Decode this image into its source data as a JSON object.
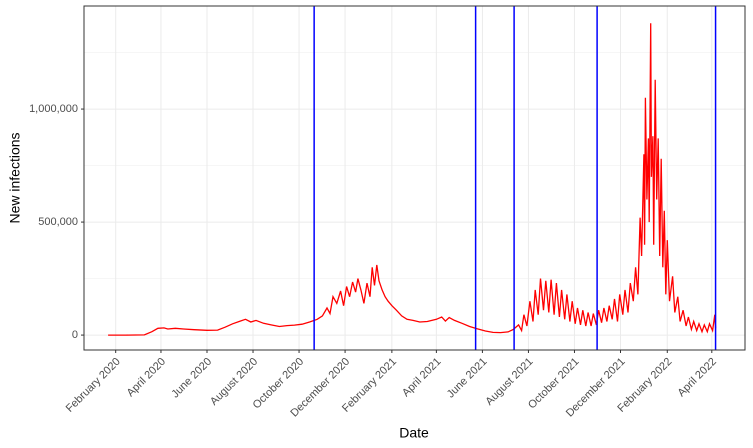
{
  "chart_data": {
    "type": "line",
    "xlabel": "Date",
    "ylabel": "New infections",
    "x": [
      "2020-01-22",
      "2020-02-15",
      "2020-03-10",
      "2020-03-20",
      "2020-03-28",
      "2020-04-05",
      "2020-04-10",
      "2020-04-20",
      "2020-05-01",
      "2020-05-15",
      "2020-06-01",
      "2020-06-15",
      "2020-06-25",
      "2020-07-05",
      "2020-07-15",
      "2020-07-22",
      "2020-07-29",
      "2020-08-05",
      "2020-08-15",
      "2020-08-25",
      "2020-09-05",
      "2020-09-15",
      "2020-09-25",
      "2020-10-05",
      "2020-10-15",
      "2020-10-25",
      "2020-11-01",
      "2020-11-07",
      "2020-11-11",
      "2020-11-15",
      "2020-11-20",
      "2020-11-25",
      "2020-11-29",
      "2020-12-03",
      "2020-12-07",
      "2020-12-11",
      "2020-12-15",
      "2020-12-18",
      "2020-12-22",
      "2020-12-26",
      "2020-12-30",
      "2021-01-03",
      "2021-01-06",
      "2021-01-09",
      "2021-01-12",
      "2021-01-15",
      "2021-01-19",
      "2021-01-23",
      "2021-01-27",
      "2021-02-01",
      "2021-02-07",
      "2021-02-14",
      "2021-02-21",
      "2021-03-01",
      "2021-03-10",
      "2021-03-20",
      "2021-04-01",
      "2021-04-08",
      "2021-04-13",
      "2021-04-18",
      "2021-04-25",
      "2021-05-05",
      "2021-05-15",
      "2021-05-25",
      "2021-06-05",
      "2021-06-15",
      "2021-06-25",
      "2021-07-05",
      "2021-07-12",
      "2021-07-19",
      "2021-07-23",
      "2021-07-26",
      "2021-07-30",
      "2021-08-03",
      "2021-08-07",
      "2021-08-10",
      "2021-08-14",
      "2021-08-17",
      "2021-08-21",
      "2021-08-24",
      "2021-08-28",
      "2021-08-31",
      "2021-09-04",
      "2021-09-07",
      "2021-09-11",
      "2021-09-14",
      "2021-09-18",
      "2021-09-21",
      "2021-09-25",
      "2021-09-28",
      "2021-10-02",
      "2021-10-05",
      "2021-10-09",
      "2021-10-12",
      "2021-10-16",
      "2021-10-19",
      "2021-10-23",
      "2021-10-26",
      "2021-10-30",
      "2021-11-02",
      "2021-11-06",
      "2021-11-09",
      "2021-11-13",
      "2021-11-16",
      "2021-11-20",
      "2021-11-23",
      "2021-11-27",
      "2021-11-30",
      "2021-12-04",
      "2021-12-07",
      "2021-12-11",
      "2021-12-14",
      "2021-12-18",
      "2021-12-21",
      "2021-12-24",
      "2021-12-27",
      "2021-12-29",
      "2022-01-01",
      "2022-01-02",
      "2022-01-03",
      "2022-01-05",
      "2022-01-07",
      "2022-01-08",
      "2022-01-10",
      "2022-01-11",
      "2022-01-13",
      "2022-01-14",
      "2022-01-16",
      "2022-01-18",
      "2022-01-20",
      "2022-01-22",
      "2022-01-24",
      "2022-01-26",
      "2022-01-28",
      "2022-01-30",
      "2022-02-01",
      "2022-02-04",
      "2022-02-08",
      "2022-02-11",
      "2022-02-15",
      "2022-02-18",
      "2022-02-22",
      "2022-02-26",
      "2022-03-01",
      "2022-03-05",
      "2022-03-08",
      "2022-03-12",
      "2022-03-15",
      "2022-03-19",
      "2022-03-22",
      "2022-03-26",
      "2022-03-29",
      "2022-04-02",
      "2022-04-05",
      "2022-04-06"
    ],
    "series": [
      {
        "color": "#ff0000",
        "values": [
          0,
          0,
          1000,
          15000,
          30000,
          32000,
          27000,
          30000,
          27000,
          24000,
          21000,
          22000,
          35000,
          50000,
          62000,
          70000,
          58000,
          65000,
          52000,
          45000,
          38000,
          42000,
          44000,
          48000,
          58000,
          70000,
          85000,
          120000,
          95000,
          170000,
          140000,
          195000,
          130000,
          215000,
          170000,
          235000,
          190000,
          250000,
          200000,
          140000,
          230000,
          170000,
          300000,
          220000,
          310000,
          240000,
          200000,
          170000,
          150000,
          130000,
          110000,
          85000,
          70000,
          65000,
          58000,
          60000,
          70000,
          80000,
          62000,
          78000,
          65000,
          52000,
          38000,
          28000,
          18000,
          12000,
          11000,
          14000,
          25000,
          45000,
          20000,
          90000,
          40000,
          150000,
          60000,
          200000,
          90000,
          250000,
          110000,
          240000,
          100000,
          245000,
          90000,
          230000,
          80000,
          200000,
          70000,
          180000,
          60000,
          150000,
          50000,
          120000,
          45000,
          110000,
          40000,
          100000,
          40000,
          95000,
          45000,
          110000,
          55000,
          120000,
          60000,
          130000,
          70000,
          160000,
          60000,
          180000,
          90000,
          200000,
          100000,
          230000,
          150000,
          300000,
          180000,
          520000,
          350000,
          800000,
          400000,
          1050000,
          600000,
          870000,
          500000,
          1380000,
          700000,
          880000,
          400000,
          1130000,
          600000,
          870000,
          350000,
          780000,
          300000,
          550000,
          180000,
          420000,
          150000,
          260000,
          100000,
          170000,
          60000,
          110000,
          40000,
          80000,
          25000,
          60000,
          20000,
          50000,
          15000,
          45000,
          15000,
          50000,
          20000,
          90000,
          30000
        ]
      }
    ],
    "vlines": [
      "2020-10-21",
      "2021-05-23",
      "2021-07-13",
      "2021-10-31",
      "2022-04-06"
    ],
    "vline_color": "#0000ff",
    "xlim": [
      "2019-12-21",
      "2022-05-15"
    ],
    "xticks": [
      {
        "value": "2020-02-01",
        "label": "February 2020"
      },
      {
        "value": "2020-04-01",
        "label": "April 2020"
      },
      {
        "value": "2020-06-01",
        "label": "June 2020"
      },
      {
        "value": "2020-08-01",
        "label": "August 2020"
      },
      {
        "value": "2020-10-01",
        "label": "October 2020"
      },
      {
        "value": "2020-12-01",
        "label": "December 2020"
      },
      {
        "value": "2021-02-01",
        "label": "February 2021"
      },
      {
        "value": "2021-04-01",
        "label": "April 2021"
      },
      {
        "value": "2021-06-01",
        "label": "June 2021"
      },
      {
        "value": "2021-08-01",
        "label": "August 2021"
      },
      {
        "value": "2021-10-01",
        "label": "October 2021"
      },
      {
        "value": "2021-12-01",
        "label": "December 2021"
      },
      {
        "value": "2022-02-01",
        "label": "February 2022"
      },
      {
        "value": "2022-04-01",
        "label": "April 2022"
      }
    ],
    "ylim": [
      -66000,
      1456000
    ],
    "yticks": [
      0,
      {
        "value": 500000,
        "label": "500,000"
      },
      {
        "value": 1000000,
        "label": "1,000,000"
      }
    ],
    "yminorticks": [
      250000,
      750000,
      1250000
    ],
    "grid": true
  }
}
